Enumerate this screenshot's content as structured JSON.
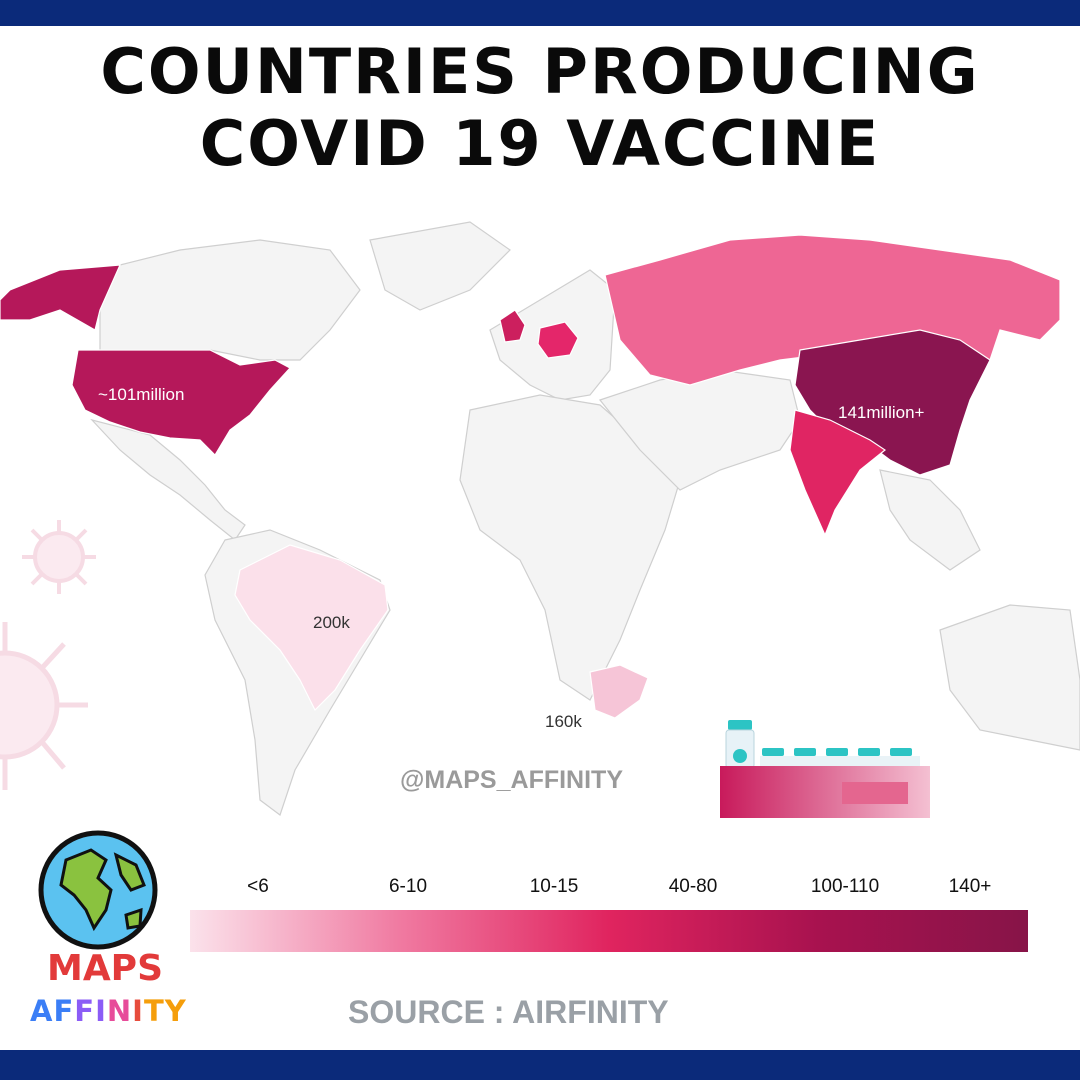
{
  "title": {
    "line1": "COUNTRIES PRODUCING",
    "line2": "COVID 19 VACCINE"
  },
  "map": {
    "labels": {
      "usa": "~101million",
      "china": "141million+",
      "brazil": "200k",
      "south_africa": "160k"
    },
    "colors": {
      "land": "#f4f4f4",
      "border": "#cfcfcf",
      "china": "#8a1550",
      "usa": "#b5185a",
      "india": "#e02563",
      "germany": "#e4266a",
      "uk": "#cc1f5e",
      "russia": "#ee6694",
      "brazil": "#fbe0ea",
      "south_africa": "#f6c5d7"
    }
  },
  "watermark": "@MAPS_AFFINITY",
  "legend": {
    "labels": [
      "<6",
      "6-10",
      "10-15",
      "40-80",
      "100-110",
      "140+"
    ],
    "gradient": [
      "#fbe2eb",
      "#f07aa1",
      "#e0245f",
      "#a8124f",
      "#871448"
    ]
  },
  "source": "SOURCE : AIRFINITY",
  "logo": {
    "line1": "MAPS",
    "line2_letters": [
      "A",
      "F",
      "F",
      "I",
      "N",
      "I",
      "T",
      "Y"
    ],
    "line2_colors": [
      "#3b7ef6",
      "#3b7ef6",
      "#8b5cf6",
      "#8b5cf6",
      "#e74c9a",
      "#e74c3c",
      "#f59e0b",
      "#f59e0b"
    ]
  },
  "icons": {
    "globe": "globe-icon",
    "vaccine": "vaccine-vials-icon",
    "virus": "virus-icon"
  }
}
